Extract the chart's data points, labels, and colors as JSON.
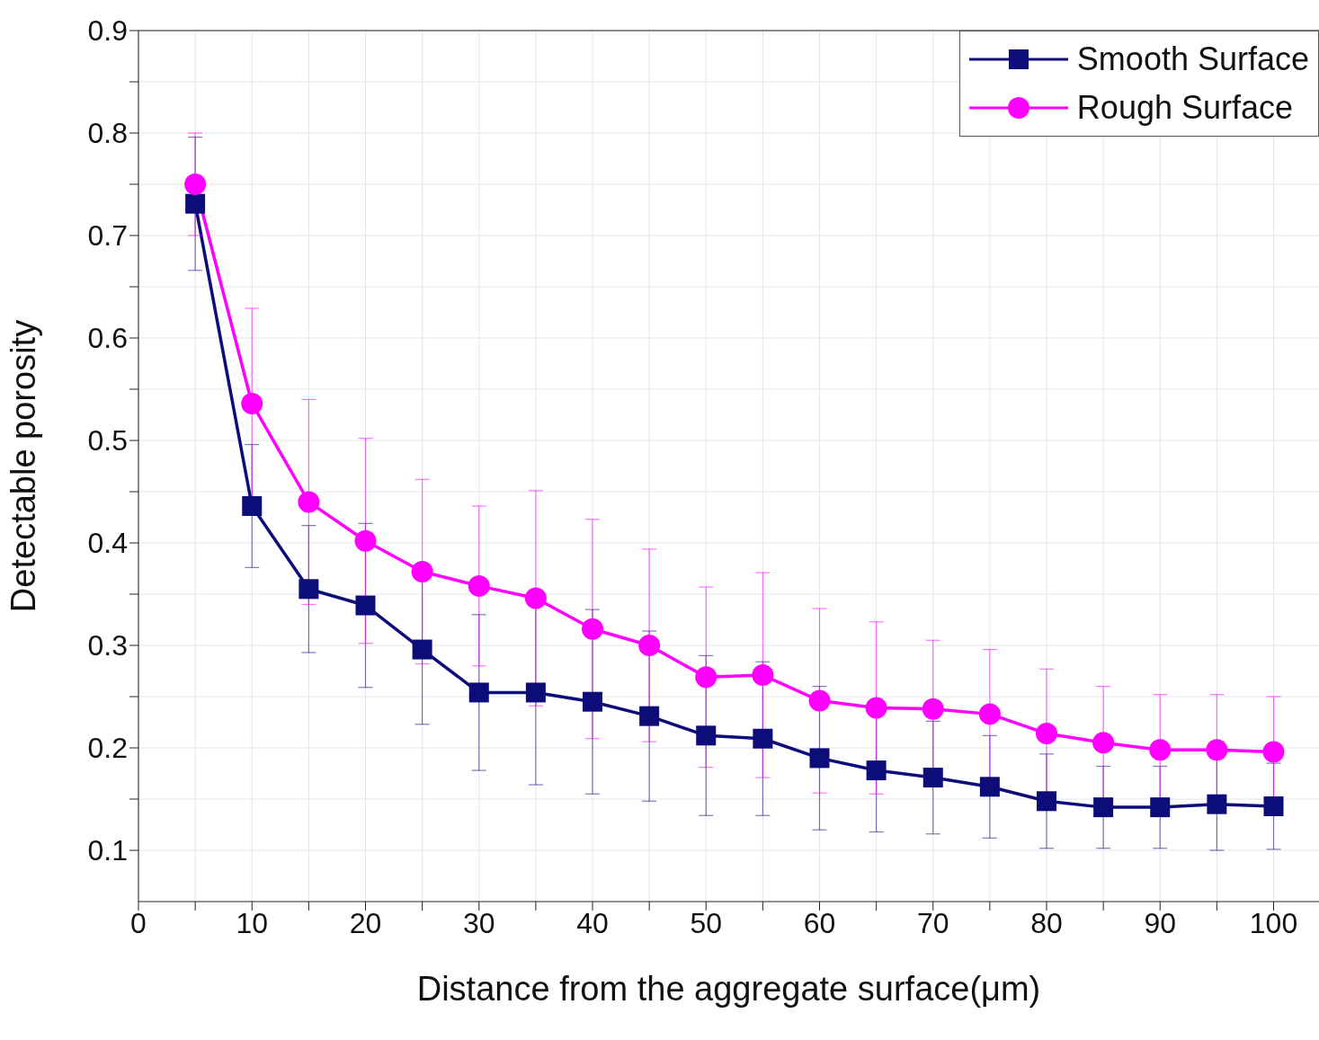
{
  "chart_data": {
    "type": "line",
    "xlabel": "Distance from the aggregate surface(μm)",
    "ylabel": "Detectable porosity",
    "x": [
      5,
      10,
      15,
      20,
      25,
      30,
      35,
      40,
      45,
      50,
      55,
      60,
      65,
      70,
      75,
      80,
      85,
      90,
      95,
      100
    ],
    "series": [
      {
        "name": "Smooth Surface",
        "color": "#0d0d7a",
        "marker": "square",
        "values": [
          0.731,
          0.436,
          0.355,
          0.339,
          0.296,
          0.254,
          0.254,
          0.245,
          0.231,
          0.212,
          0.209,
          0.19,
          0.178,
          0.171,
          0.162,
          0.148,
          0.142,
          0.142,
          0.145,
          0.143
        ],
        "errors": [
          0.065,
          0.06,
          0.062,
          0.08,
          0.073,
          0.076,
          0.09,
          0.09,
          0.083,
          0.078,
          0.075,
          0.07,
          0.06,
          0.055,
          0.05,
          0.046,
          0.04,
          0.04,
          0.045,
          0.042
        ]
      },
      {
        "name": "Rough Surface",
        "color": "#ff00ff",
        "marker": "circle",
        "values": [
          0.75,
          0.536,
          0.44,
          0.402,
          0.372,
          0.358,
          0.346,
          0.316,
          0.3,
          0.269,
          0.271,
          0.246,
          0.239,
          0.238,
          0.233,
          0.214,
          0.205,
          0.198,
          0.198,
          0.196
        ],
        "errors": [
          0.05,
          0.093,
          0.1,
          0.1,
          0.09,
          0.078,
          0.105,
          0.107,
          0.094,
          0.088,
          0.1,
          0.09,
          0.084,
          0.067,
          0.063,
          0.063,
          0.055,
          0.054,
          0.054,
          0.054
        ]
      }
    ],
    "xlim": [
      0,
      104
    ],
    "xticks": [
      0,
      {
        "value": 5,
        "label": null
      },
      10,
      {
        "value": 15,
        "label": null
      },
      20,
      {
        "value": 25,
        "label": null
      },
      30,
      {
        "value": 35,
        "label": null
      },
      40,
      {
        "value": 45,
        "label": null
      },
      50,
      {
        "value": 55,
        "label": null
      },
      60,
      {
        "value": 65,
        "label": null
      },
      70,
      {
        "value": 75,
        "label": null
      },
      80,
      {
        "value": 85,
        "label": null
      },
      90,
      {
        "value": 95,
        "label": null
      },
      100
    ],
    "ylim": [
      0.05,
      0.9
    ],
    "yticks": [
      0.1,
      {
        "value": 0.15,
        "label": null
      },
      0.2,
      {
        "value": 0.25,
        "label": null
      },
      0.3,
      {
        "value": 0.35,
        "label": null
      },
      0.4,
      {
        "value": 0.45,
        "label": null
      },
      0.5,
      {
        "value": 0.55,
        "label": null
      },
      0.6,
      {
        "value": 0.65,
        "label": null
      },
      0.7,
      {
        "value": 0.75,
        "label": null
      },
      0.8,
      {
        "value": 0.85,
        "label": null
      },
      0.9
    ],
    "grid": true,
    "legend": "top right",
    "line_style": "solid"
  }
}
